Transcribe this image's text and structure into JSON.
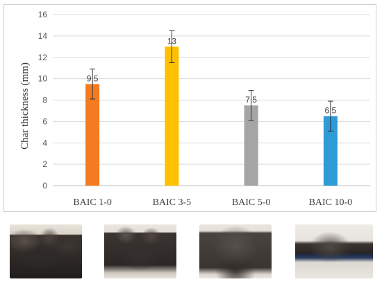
{
  "chart_data": {
    "type": "bar",
    "title": "",
    "xlabel": "",
    "ylabel": "Char thickness (mm)",
    "categories": [
      "BAIC 1-0",
      "BAIC 3-5",
      "BAIC 5-0",
      "BAIC 10-0"
    ],
    "values": [
      9.5,
      13,
      7.5,
      6.5
    ],
    "data_labels": [
      "9.5",
      "13",
      "7.5",
      "6.5"
    ],
    "error_bars": [
      1.4,
      1.5,
      1.4,
      1.4
    ],
    "bar_colors": [
      "#F47B20",
      "#FFC000",
      "#A5A5A5",
      "#2E9BD6"
    ],
    "ylim": [
      0,
      16
    ],
    "yticks": [
      0,
      2,
      4,
      6,
      8,
      10,
      12,
      14,
      16
    ],
    "grid": true,
    "legend": "none"
  },
  "photos": [
    {
      "caption_id": "BAIC 1-0"
    },
    {
      "caption_id": "BAIC 3-5"
    },
    {
      "caption_id": "BAIC 5-0"
    },
    {
      "caption_id": "BAIC 10-0"
    }
  ]
}
